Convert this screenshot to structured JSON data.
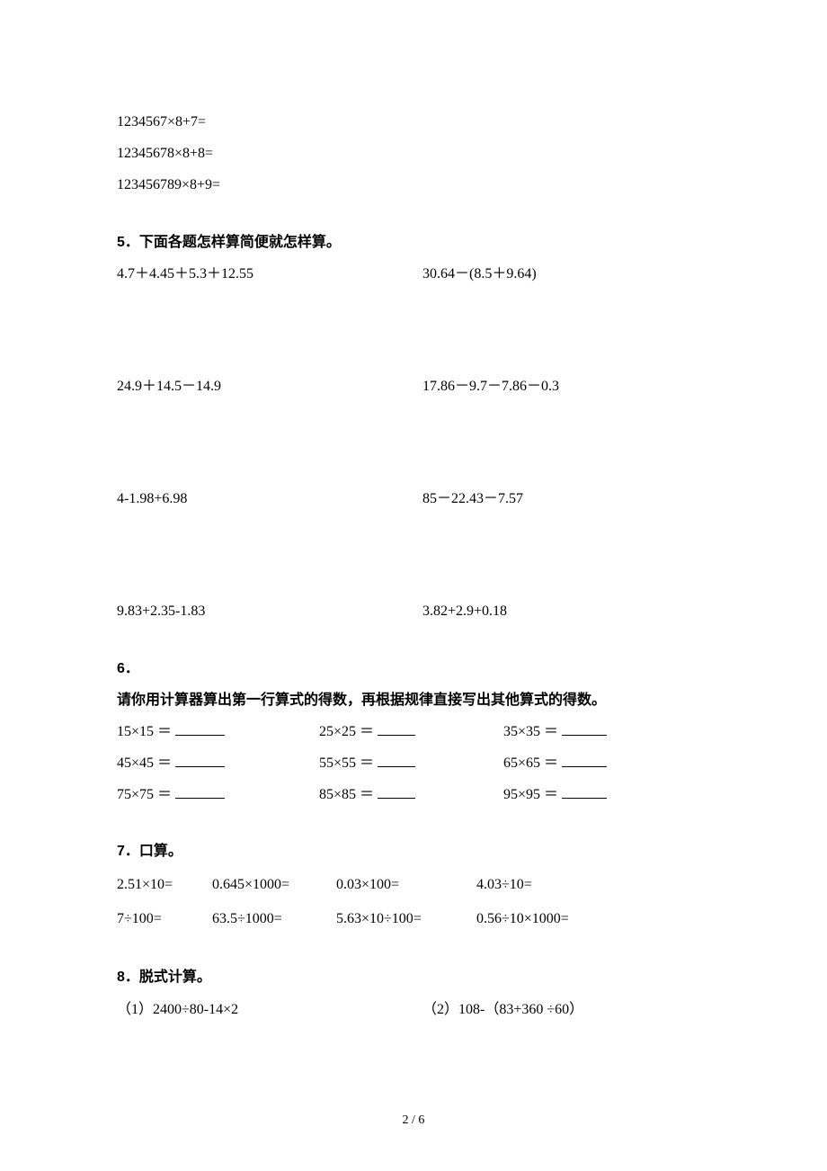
{
  "top_lines": [
    "1234567×8+7=",
    "12345678×8+8=",
    "123456789×8+9="
  ],
  "section5": {
    "num": "5．",
    "title": "下面各题怎样算简便就怎样算。",
    "rows": [
      {
        "left": "4.7＋4.45＋5.3＋12.55",
        "right": "30.64－(8.5＋9.64)"
      },
      {
        "left": "24.9＋14.5－14.9",
        "right": "17.86－9.7－7.86－0.3"
      },
      {
        "left": "4-1.98+6.98",
        "right": "85－22.43－7.57"
      },
      {
        "left": "9.83+2.35-1.83",
        "right": "3.82+2.9+0.18"
      }
    ]
  },
  "section6": {
    "num": "6．",
    "text": "请你用计算器算出第一行算式的得数，再根据规律直接写出其他算式的得数。",
    "rows": [
      {
        "a": "15×15 ＝",
        "b": "25×25 ＝",
        "c": "35×35 ＝"
      },
      {
        "a": "45×45 ＝",
        "b": "55×55 ＝",
        "c": "65×65 ＝"
      },
      {
        "a": "75×75 ＝",
        "b": "85×85 ＝",
        "c": "95×95 ＝"
      }
    ]
  },
  "section7": {
    "num": "7．",
    "title": "口算。",
    "rows": [
      {
        "c1": "2.51×10=",
        "c2": "0.645×1000=",
        "c3": "0.03×100=",
        "c4": "4.03÷10="
      },
      {
        "c1": "7÷100=",
        "c2": "63.5÷1000=",
        "c3": "5.63×10÷100=",
        "c4": "0.56÷10×1000="
      }
    ]
  },
  "section8": {
    "num": "8．",
    "title": "脱式计算。",
    "row": {
      "left": "（1）2400÷80-14×2",
      "right": "（2）108-（83+360 ÷60）"
    }
  },
  "page_number": "2 / 6"
}
